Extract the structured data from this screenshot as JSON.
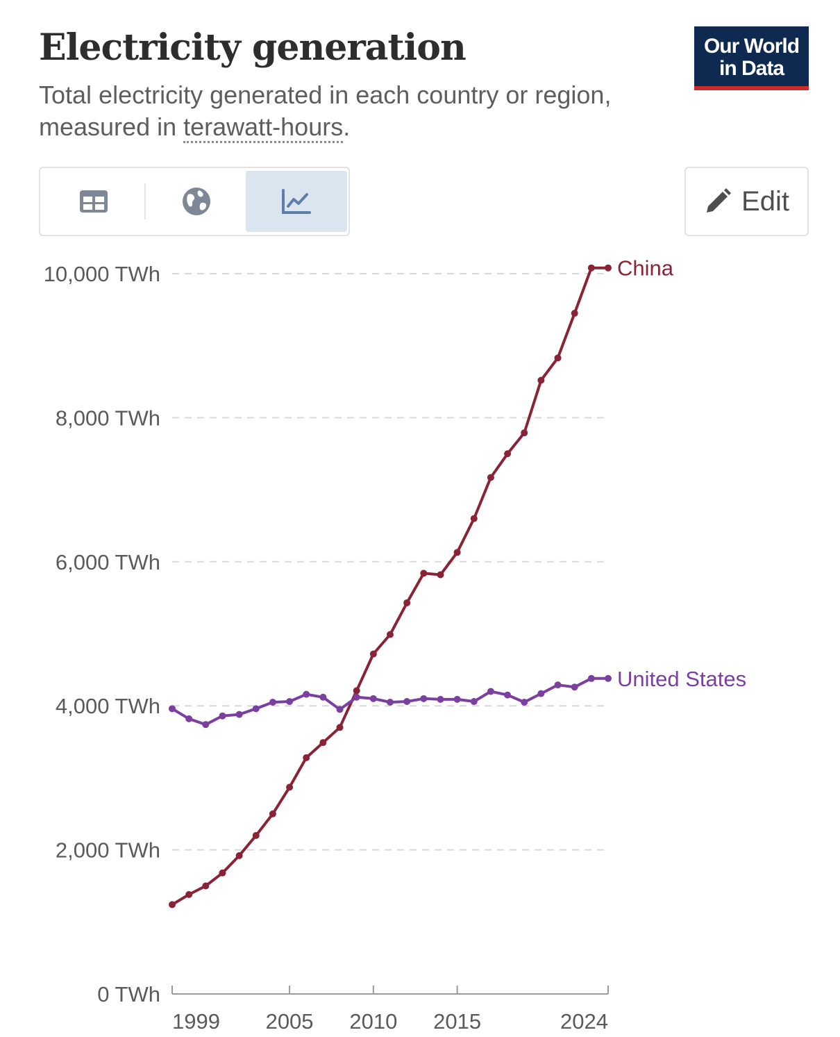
{
  "header": {
    "title": "Electricity generation",
    "subtitle_part1": "Total electricity generated in each country or region, measured in ",
    "subtitle_term": "terawatt-hours",
    "subtitle_end": ".",
    "logo_line1": "Our World",
    "logo_line2": "in Data"
  },
  "toolbar": {
    "tabs": [
      {
        "icon": "table-icon",
        "active": false
      },
      {
        "icon": "globe-icon",
        "active": false
      },
      {
        "icon": "line-chart-icon",
        "active": true
      }
    ],
    "edit_label": "Edit",
    "edit_icon": "pencil-icon"
  },
  "colors": {
    "china": "#8b2336",
    "united_states": "#7b3fa0",
    "logo_bg": "#0e2a50",
    "logo_bar": "#cf2a2a",
    "active_tab": "#dbe5f0"
  },
  "chart_data": {
    "type": "line",
    "unit": "TWh",
    "x": [
      1998,
      1999,
      2000,
      2001,
      2002,
      2003,
      2004,
      2005,
      2006,
      2007,
      2008,
      2009,
      2010,
      2011,
      2012,
      2013,
      2014,
      2015,
      2016,
      2017,
      2018,
      2019,
      2020,
      2021,
      2022,
      2023,
      2024
    ],
    "series": [
      {
        "name": "China",
        "color": "#8b2336",
        "values": [
          1240,
          1380,
          1500,
          1680,
          1920,
          2200,
          2500,
          2870,
          3280,
          3490,
          3700,
          4210,
          4720,
          4990,
          5430,
          5840,
          5820,
          6130,
          6600,
          7170,
          7500,
          7790,
          8520,
          8830,
          9450,
          10080,
          10080
        ]
      },
      {
        "name": "United States",
        "color": "#7b3fa0",
        "values": [
          3960,
          3820,
          3740,
          3860,
          3880,
          3960,
          4050,
          4060,
          4160,
          4120,
          3950,
          4120,
          4100,
          4050,
          4060,
          4100,
          4090,
          4090,
          4060,
          4200,
          4150,
          4050,
          4170,
          4290,
          4260,
          4380,
          4380
        ]
      }
    ],
    "y_ticks": [
      0,
      2000,
      4000,
      6000,
      8000,
      10000
    ],
    "y_tick_labels": [
      "0 TWh",
      "2,000 TWh",
      "4,000 TWh",
      "6,000 TWh",
      "8,000 TWh",
      "10,000 TWh"
    ],
    "x_ticks": [
      1999,
      2005,
      2010,
      2015,
      2024
    ],
    "x_tick_labels": [
      "1999",
      "2005",
      "2010",
      "2015",
      "2024"
    ],
    "ylim": [
      0,
      10000
    ],
    "grid": "horizontal dashed",
    "legend": "inline labels at line ends"
  }
}
